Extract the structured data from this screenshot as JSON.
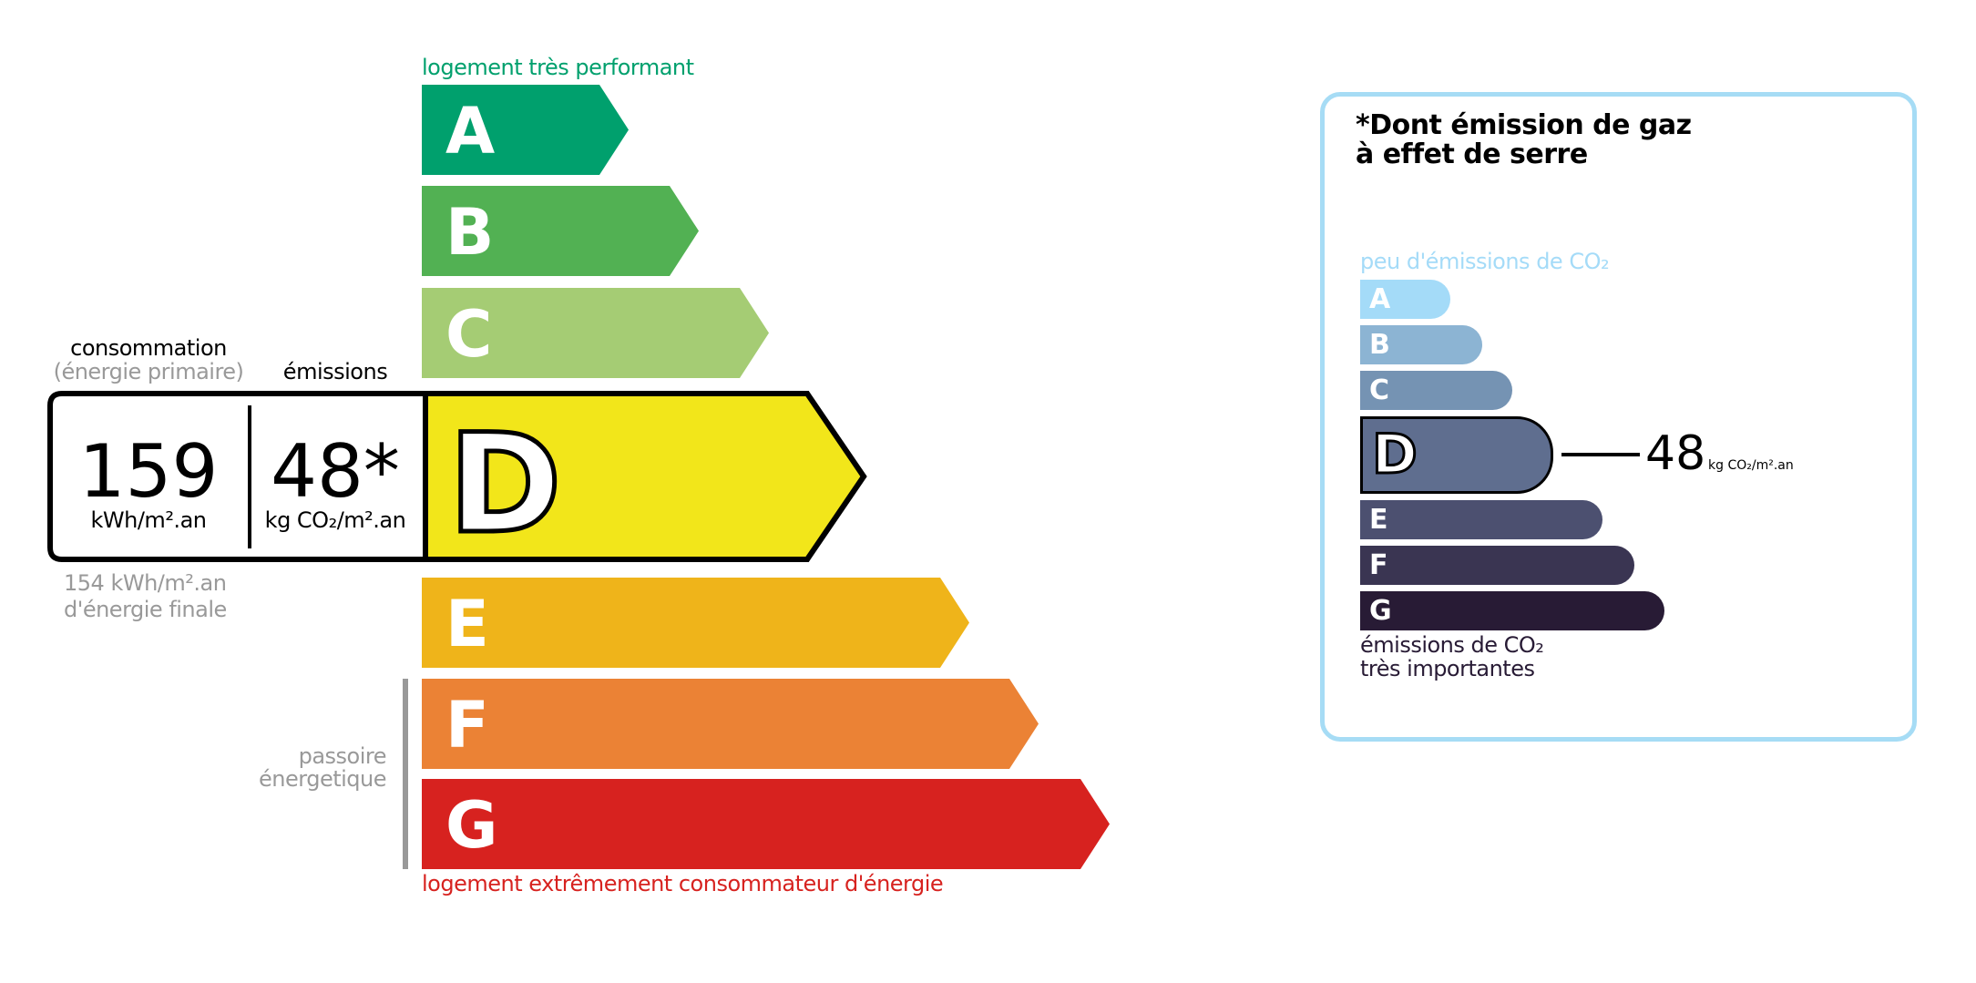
{
  "energy": {
    "top_label": "logement très performant",
    "bottom_label": "logement extrêmement consommateur d'énergie",
    "passoire_label": [
      "passoire",
      "énergetique"
    ],
    "classes": [
      {
        "letter": "A",
        "color": "#00a06d"
      },
      {
        "letter": "B",
        "color": "#52b153"
      },
      {
        "letter": "C",
        "color": "#a5cc74"
      },
      {
        "letter": "D",
        "color": "#f2e61a"
      },
      {
        "letter": "E",
        "color": "#efb41a"
      },
      {
        "letter": "F",
        "color": "#eb8235"
      },
      {
        "letter": "G",
        "color": "#d7221f"
      }
    ],
    "current_class": "D",
    "consumption_header": "consommation",
    "consumption_sub": "(énergie primaire)",
    "emissions_header": "émissions",
    "consumption_value": "159",
    "consumption_unit": "kWh/m².an",
    "emissions_value": "48*",
    "emissions_unit": "kg CO₂/m².an",
    "final_energy_value": "154 kWh/m².an",
    "final_energy_label": "d'énergie finale"
  },
  "ges": {
    "title_line1": "*Dont émission de gaz",
    "title_line2": "à effet de serre",
    "top_label": "peu d'émissions de CO₂",
    "bottom_label_line1": "émissions de CO₂",
    "bottom_label_line2": "très importantes",
    "classes": [
      {
        "letter": "A",
        "color": "#a4dbf8"
      },
      {
        "letter": "B",
        "color": "#8cb4d3"
      },
      {
        "letter": "C",
        "color": "#7593b3"
      },
      {
        "letter": "D",
        "color": "#5f6e8f"
      },
      {
        "letter": "E",
        "color": "#4c5070"
      },
      {
        "letter": "F",
        "color": "#3a3552"
      },
      {
        "letter": "G",
        "color": "#281b35"
      }
    ],
    "current_class": "D",
    "value": "48",
    "unit": "kg CO₂/m².an",
    "border_color": "#a6dcf5"
  }
}
